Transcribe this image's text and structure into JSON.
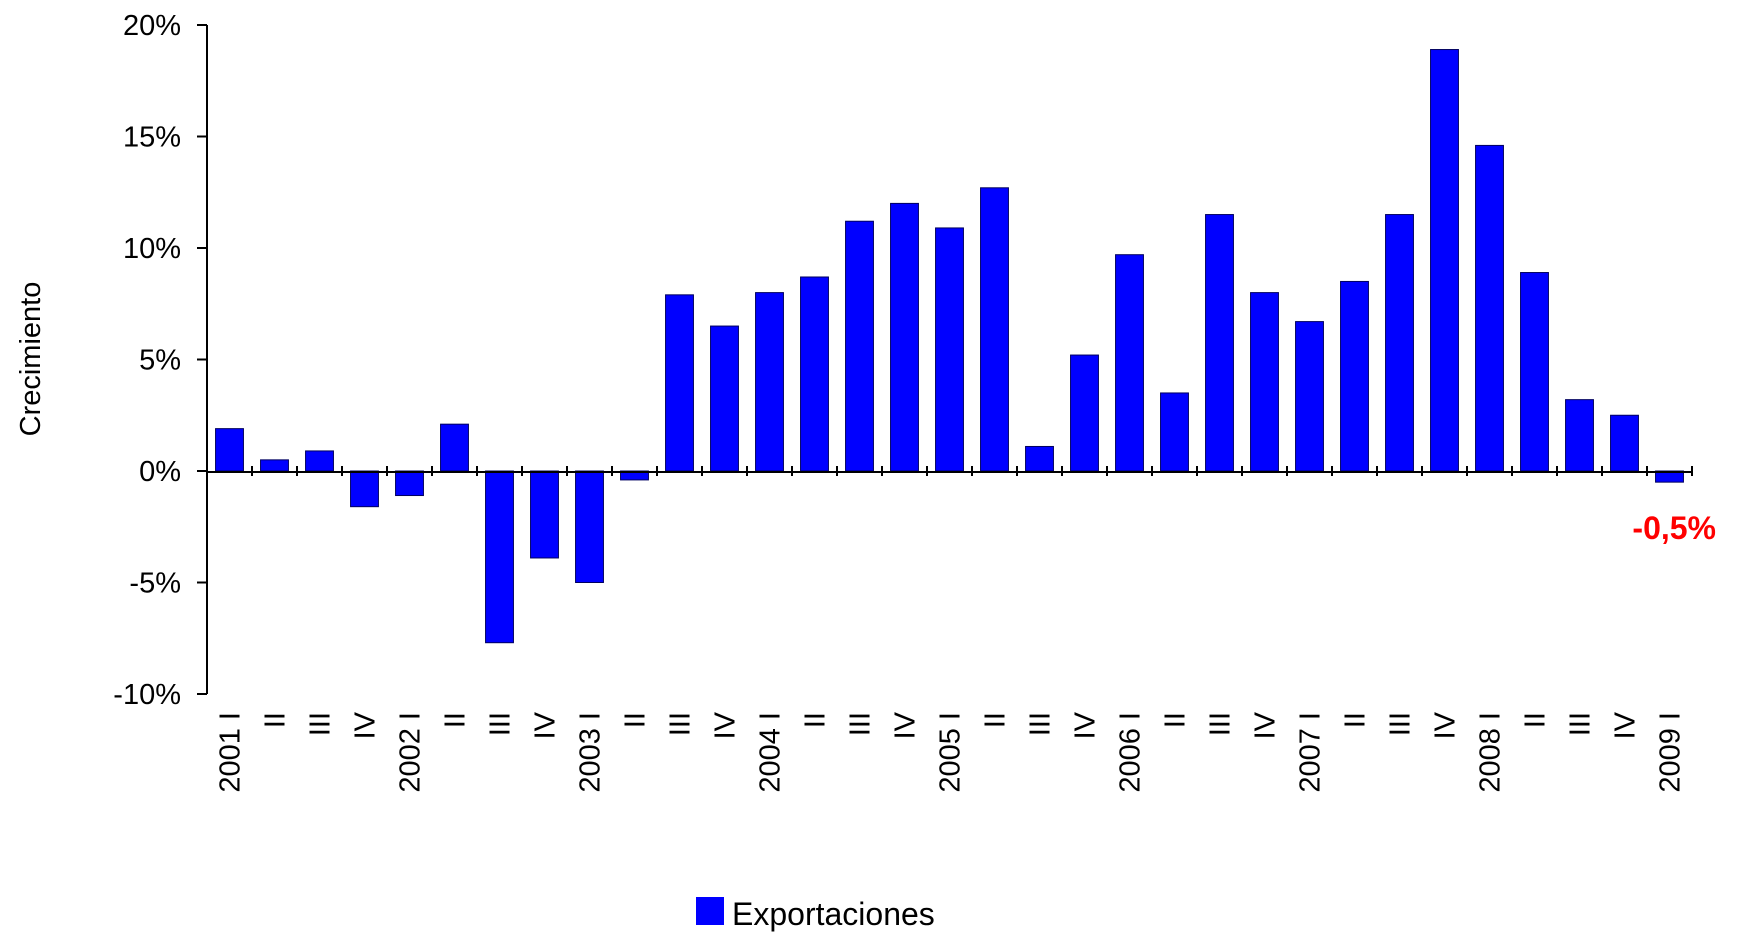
{
  "chart_data": {
    "type": "bar",
    "title": "",
    "xlabel": "",
    "ylabel": "Crecimiento",
    "ylim": [
      -10,
      20
    ],
    "y_ticks": [
      20,
      15,
      10,
      5,
      0,
      -5,
      -10
    ],
    "y_tick_labels": [
      "20%",
      "15%",
      "10%",
      "5%",
      "0%",
      "-5%",
      "-10%"
    ],
    "grid": false,
    "legend_position": "bottom",
    "bar_color": "#0000FF",
    "categories": [
      "2001 I",
      "II",
      "III",
      "IV",
      "2002 I",
      "II",
      "III",
      "IV",
      "2003 I",
      "II",
      "III",
      "IV",
      "2004 I",
      "II",
      "III",
      "IV",
      "2005 I",
      "II",
      "III",
      "IV",
      "2006 I",
      "II",
      "III",
      "IV",
      "2007 I",
      "II",
      "III",
      "IV",
      "2008 I",
      "II",
      "III",
      "IV",
      "2009 I"
    ],
    "series": [
      {
        "name": "Exportaciones",
        "values": [
          1.9,
          0.5,
          0.9,
          -1.6,
          -1.1,
          2.1,
          -7.7,
          -3.9,
          -5.0,
          -0.4,
          7.9,
          6.5,
          8.0,
          8.7,
          11.2,
          12.0,
          10.9,
          12.7,
          1.1,
          5.2,
          9.7,
          3.5,
          11.5,
          8.0,
          6.7,
          8.5,
          11.5,
          18.9,
          14.6,
          8.9,
          3.2,
          2.5,
          -0.5
        ]
      }
    ],
    "annotation": {
      "text": "-0,5%",
      "color": "#FF0000"
    }
  }
}
